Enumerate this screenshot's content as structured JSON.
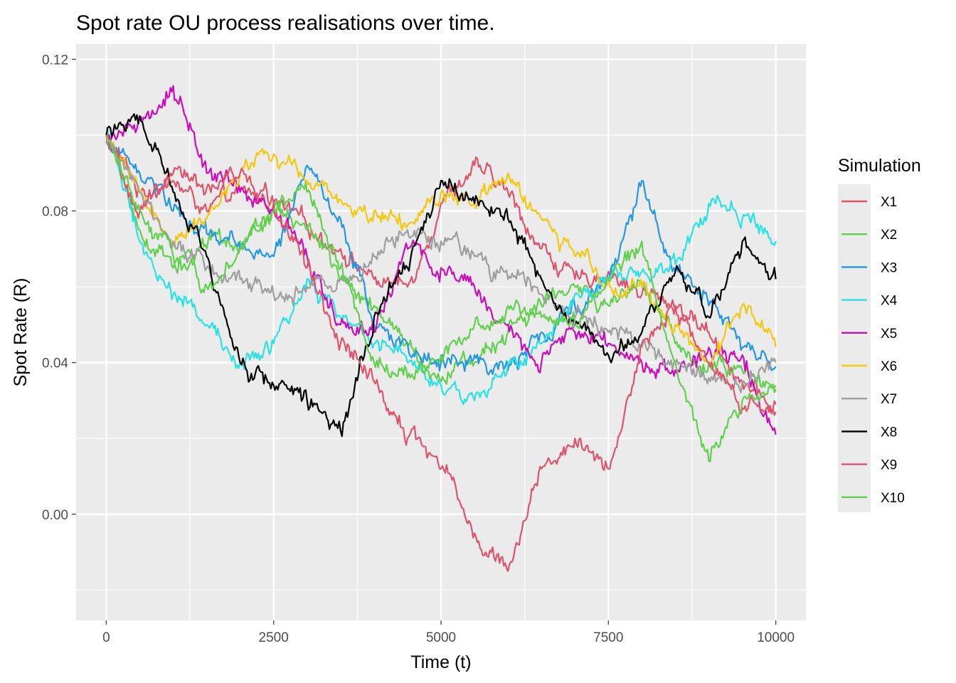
{
  "chart_data": {
    "type": "line",
    "title": "Spot rate OU process realisations over time.",
    "xlabel": "Time (t)",
    "ylabel": "Spot Rate (R)",
    "xlim": [
      -450,
      10450
    ],
    "ylim": [
      -0.028,
      0.124
    ],
    "x_ticks": [
      0,
      2500,
      5000,
      7500,
      10000
    ],
    "x_tick_labels": [
      "0",
      "2500",
      "5000",
      "7500",
      "10000"
    ],
    "y_ticks": [
      0.0,
      0.04,
      0.08,
      0.12
    ],
    "y_tick_labels": [
      "0.00",
      "0.04",
      "0.08",
      "0.12"
    ],
    "grid": true,
    "legend": {
      "title": "Simulation",
      "position": "right"
    },
    "series": [
      {
        "name": "X1",
        "color": "#DF536B",
        "x": [
          0,
          500,
          1000,
          1500,
          2000,
          2500,
          3000,
          3500,
          4000,
          4500,
          5000,
          5500,
          6000,
          6500,
          7000,
          7500,
          8000,
          8500,
          9000,
          9500,
          10000
        ],
        "y": [
          0.1,
          0.085,
          0.088,
          0.08,
          0.085,
          0.082,
          0.076,
          0.07,
          0.062,
          0.06,
          0.082,
          0.092,
          0.085,
          0.07,
          0.062,
          0.064,
          0.058,
          0.055,
          0.048,
          0.035,
          0.027
        ]
      },
      {
        "name": "X2",
        "color": "#61D04F",
        "x": [
          0,
          500,
          1000,
          1500,
          2000,
          2500,
          3000,
          3500,
          4000,
          4500,
          5000,
          5500,
          6000,
          6500,
          7000,
          7500,
          8000,
          8500,
          9000,
          9500,
          10000
        ],
        "y": [
          0.1,
          0.075,
          0.065,
          0.07,
          0.072,
          0.08,
          0.075,
          0.062,
          0.055,
          0.045,
          0.035,
          0.04,
          0.048,
          0.055,
          0.06,
          0.055,
          0.06,
          0.045,
          0.04,
          0.038,
          0.033
        ]
      },
      {
        "name": "X3",
        "color": "#2297E6",
        "x": [
          0,
          500,
          1000,
          1500,
          2000,
          2500,
          3000,
          3500,
          4000,
          4500,
          5000,
          5500,
          6000,
          6500,
          7000,
          7500,
          8000,
          8500,
          9000,
          9500,
          10000
        ],
        "y": [
          0.098,
          0.09,
          0.08,
          0.074,
          0.07,
          0.068,
          0.092,
          0.078,
          0.05,
          0.045,
          0.04,
          0.042,
          0.038,
          0.048,
          0.055,
          0.062,
          0.088,
          0.064,
          0.055,
          0.044,
          0.039
        ]
      },
      {
        "name": "X4",
        "color": "#28E2E5",
        "x": [
          0,
          500,
          1000,
          1500,
          2000,
          2500,
          3000,
          3500,
          4000,
          4500,
          5000,
          5500,
          6000,
          6500,
          7000,
          7500,
          8000,
          8500,
          9000,
          9500,
          10000
        ],
        "y": [
          0.102,
          0.072,
          0.058,
          0.05,
          0.04,
          0.045,
          0.062,
          0.052,
          0.045,
          0.04,
          0.034,
          0.03,
          0.04,
          0.045,
          0.058,
          0.062,
          0.064,
          0.066,
          0.082,
          0.078,
          0.072
        ]
      },
      {
        "name": "X5",
        "color": "#CD0BBC",
        "x": [
          0,
          500,
          1000,
          1500,
          2000,
          2500,
          3000,
          3500,
          4000,
          4500,
          5000,
          5500,
          6000,
          6500,
          7000,
          7500,
          8000,
          8500,
          9000,
          9500,
          10000
        ],
        "y": [
          0.1,
          0.105,
          0.113,
          0.09,
          0.085,
          0.08,
          0.068,
          0.05,
          0.048,
          0.07,
          0.065,
          0.06,
          0.05,
          0.04,
          0.048,
          0.045,
          0.04,
          0.038,
          0.044,
          0.042,
          0.021
        ]
      },
      {
        "name": "X6",
        "color": "#F5C710",
        "x": [
          0,
          500,
          1000,
          1500,
          2000,
          2500,
          3000,
          3500,
          4000,
          4500,
          5000,
          5500,
          6000,
          6500,
          7000,
          7500,
          8000,
          8500,
          9000,
          9500,
          10000
        ],
        "y": [
          0.1,
          0.085,
          0.072,
          0.078,
          0.09,
          0.095,
          0.088,
          0.083,
          0.08,
          0.076,
          0.085,
          0.082,
          0.09,
          0.078,
          0.068,
          0.062,
          0.06,
          0.05,
          0.04,
          0.055,
          0.044
        ]
      },
      {
        "name": "X7",
        "color": "#9E9E9E",
        "x": [
          0,
          500,
          1000,
          1500,
          2000,
          2500,
          3000,
          3500,
          4000,
          4500,
          5000,
          5500,
          6000,
          6500,
          7000,
          7500,
          8000,
          8500,
          9000,
          9500,
          10000
        ],
        "y": [
          0.098,
          0.085,
          0.072,
          0.065,
          0.062,
          0.058,
          0.06,
          0.062,
          0.068,
          0.075,
          0.072,
          0.068,
          0.062,
          0.058,
          0.052,
          0.048,
          0.044,
          0.04,
          0.036,
          0.035,
          0.04
        ]
      },
      {
        "name": "X8",
        "color": "#000000",
        "x": [
          0,
          500,
          1000,
          1500,
          2000,
          2500,
          3000,
          3500,
          4000,
          4500,
          5000,
          5500,
          6000,
          6500,
          7000,
          7500,
          8000,
          8500,
          9000,
          9500,
          10000
        ],
        "y": [
          0.1,
          0.105,
          0.085,
          0.068,
          0.04,
          0.034,
          0.03,
          0.022,
          0.052,
          0.065,
          0.088,
          0.082,
          0.078,
          0.062,
          0.05,
          0.042,
          0.048,
          0.064,
          0.052,
          0.072,
          0.062
        ]
      },
      {
        "name": "X9",
        "color": "#DF536B",
        "x": [
          0,
          500,
          1000,
          1500,
          2000,
          2500,
          3000,
          3500,
          4000,
          4500,
          5000,
          5500,
          6000,
          6500,
          7000,
          7500,
          8000,
          8500,
          9000,
          9500,
          10000
        ],
        "y": [
          0.1,
          0.08,
          0.09,
          0.086,
          0.09,
          0.082,
          0.065,
          0.045,
          0.035,
          0.02,
          0.012,
          -0.005,
          -0.015,
          0.012,
          0.02,
          0.012,
          0.045,
          0.055,
          0.04,
          0.028,
          0.029
        ]
      },
      {
        "name": "X10",
        "color": "#61D04F",
        "x": [
          0,
          500,
          1000,
          1500,
          2000,
          2500,
          3000,
          3500,
          4000,
          4500,
          5000,
          5500,
          6000,
          6500,
          7000,
          7500,
          8000,
          8500,
          9000,
          9500,
          10000
        ],
        "y": [
          0.1,
          0.08,
          0.068,
          0.06,
          0.07,
          0.08,
          0.085,
          0.065,
          0.04,
          0.036,
          0.042,
          0.05,
          0.055,
          0.052,
          0.05,
          0.062,
          0.072,
          0.04,
          0.014,
          0.03,
          0.034
        ]
      }
    ]
  }
}
